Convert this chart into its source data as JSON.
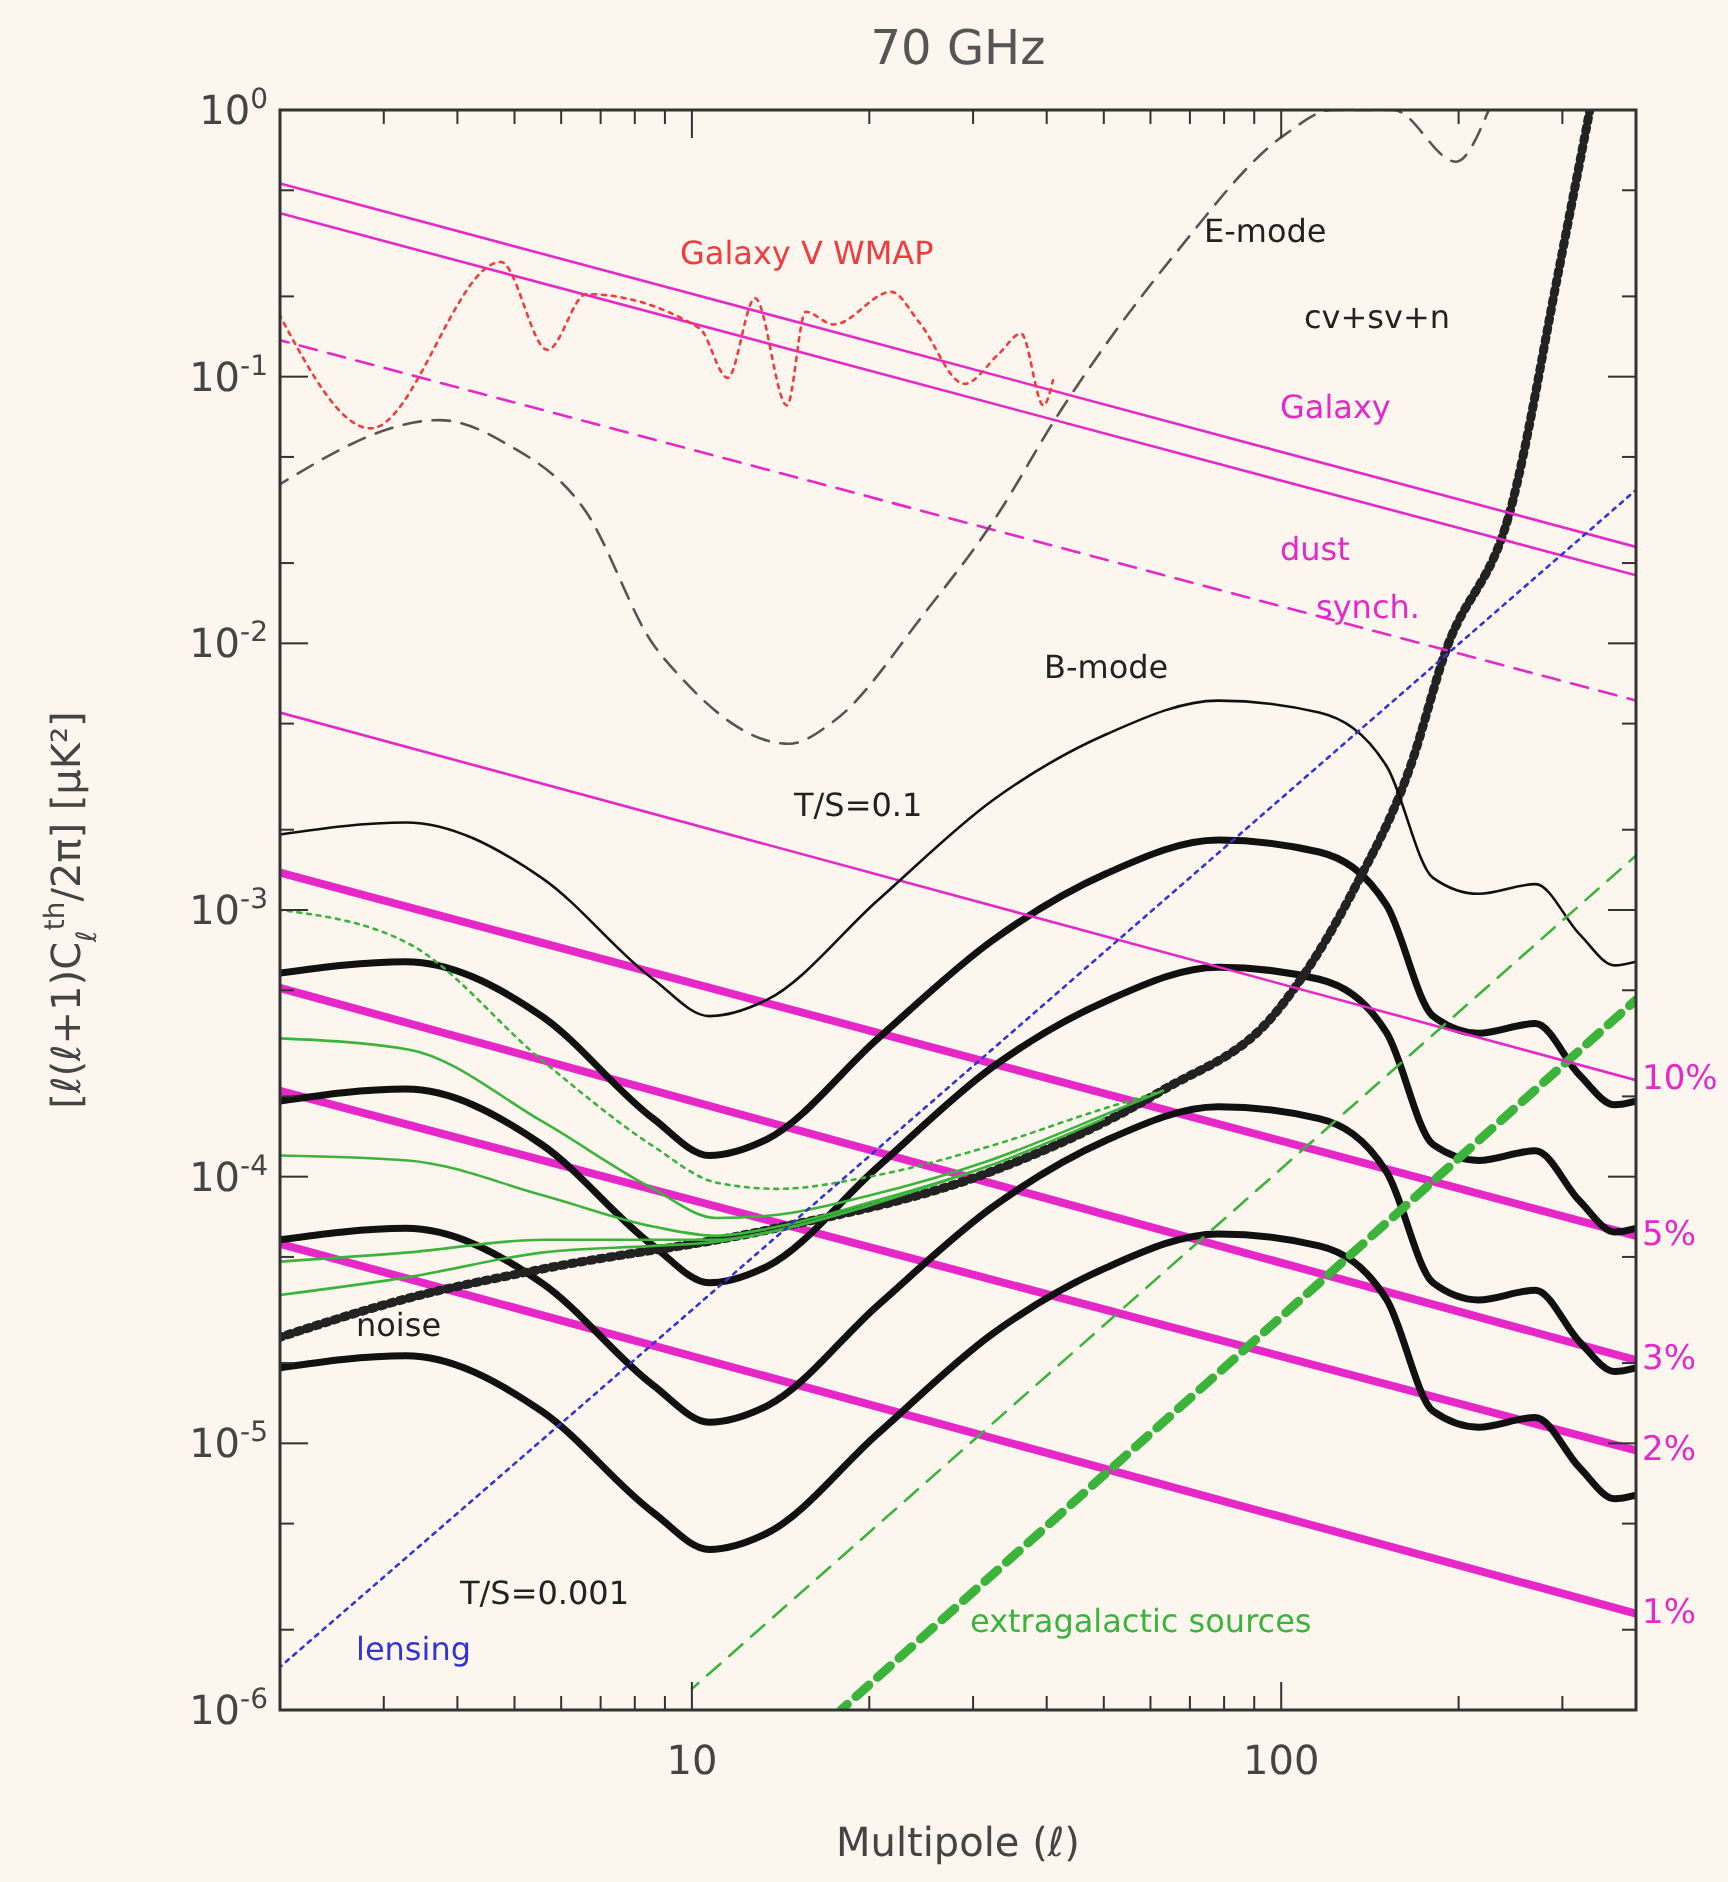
{
  "chart_data": {
    "type": "line",
    "title": "70 GHz",
    "xlabel": "Multipole (ℓ)",
    "ylabel": "[ℓ(ℓ+1)C$_{ℓ}$$^{th}$/2π] [μK²]",
    "log": "xy",
    "grid": false,
    "xlim": [
      2,
      400
    ],
    "ylim": [
      1e-06,
      1
    ],
    "xticks": [
      {
        "value": 2,
        "label": null
      },
      {
        "value": 3,
        "label": null
      },
      {
        "value": 4,
        "label": null
      },
      {
        "value": 5,
        "label": null
      },
      {
        "value": 6,
        "label": null
      },
      {
        "value": 7,
        "label": null
      },
      {
        "value": 8,
        "label": null
      },
      {
        "value": 9,
        "label": null
      },
      10,
      {
        "value": 20,
        "label": null
      },
      {
        "value": 30,
        "label": null
      },
      {
        "value": 40,
        "label": null
      },
      {
        "value": 50,
        "label": null
      },
      {
        "value": 60,
        "label": null
      },
      {
        "value": 70,
        "label": null
      },
      {
        "value": 80,
        "label": null
      },
      {
        "value": 90,
        "label": null
      },
      100,
      {
        "value": 200,
        "label": null
      },
      {
        "value": 300,
        "label": null
      },
      {
        "value": 400,
        "label": null
      }
    ],
    "yticks": [
      {
        "value": 1e-06,
        "label": "10$^{-6}$"
      },
      {
        "value": 2e-06,
        "label": null
      },
      {
        "value": 5e-06,
        "label": null
      },
      {
        "value": 1e-05,
        "label": "10$^{-5}$"
      },
      {
        "value": 2e-05,
        "label": null
      },
      {
        "value": 5e-05,
        "label": null
      },
      {
        "value": 0.0001,
        "label": "10$^{-4}$"
      },
      {
        "value": 0.0002,
        "label": null
      },
      {
        "value": 0.0005,
        "label": null
      },
      {
        "value": 0.001,
        "label": "10$^{-3}$"
      },
      {
        "value": 0.002,
        "label": null
      },
      {
        "value": 0.005,
        "label": null
      },
      {
        "value": 0.01,
        "label": "10$^{-2}$"
      },
      {
        "value": 0.02,
        "label": null
      },
      {
        "value": 0.05,
        "label": null
      },
      {
        "value": 0.1,
        "label": "10$^{-1}$"
      },
      {
        "value": 0.2,
        "label": null
      },
      {
        "value": 0.5,
        "label": null
      },
      {
        "value": 1,
        "label": "10$^{0}$"
      }
    ],
    "series": [
      {
        "color": "#e628c8",
        "line_style": "solid",
        "x": [
          2,
          400
        ],
        "values": [
          0.53,
          0.023
        ]
      },
      {
        "color": "#e628c8",
        "line_style": "solid",
        "x": [
          2,
          400
        ],
        "values": [
          0.41,
          0.018
        ]
      },
      {
        "color": "#e628c8",
        "line_style": "dashed",
        "x": [
          2,
          400
        ],
        "values": [
          0.137,
          0.0061
        ]
      },
      {
        "name": "10%",
        "color": "#e628c8",
        "line_style": "solid",
        "x": [
          2,
          400
        ],
        "values": [
          0.0055,
          0.00023
        ]
      },
      {
        "name": "5%",
        "color": "#e628c8",
        "line_style": "solid",
        "x": [
          2,
          400
        ],
        "values": [
          0.00138,
          6e-05
        ]
      },
      {
        "name": "3%",
        "color": "#e628c8",
        "line_style": "solid",
        "x": [
          2,
          400
        ],
        "values": [
          0.00051,
          2.05e-05
        ]
      },
      {
        "name": "2%",
        "color": "#e628c8",
        "line_style": "solid",
        "x": [
          2,
          400
        ],
        "values": [
          0.00021,
          9.4e-06
        ]
      },
      {
        "name": "1%",
        "color": "#e628c8",
        "line_style": "solid",
        "x": [
          2,
          400
        ],
        "values": [
          5.6e-05,
          2.3e-06
        ]
      },
      {
        "color": "#f03c3c",
        "line_style": "dotted",
        "x": [
          2,
          2.85,
          4.74,
          5.69,
          6.62,
          10.3,
          11.5,
          12.8,
          14.5,
          15.6,
          17.4,
          21.8,
          24.3,
          29,
          33.2,
          36.2,
          39.5,
          41
        ],
        "values": [
          0.169,
          0.064,
          0.269,
          0.126,
          0.204,
          0.152,
          0.099,
          0.197,
          0.078,
          0.175,
          0.157,
          0.208,
          0.16,
          0.094,
          0.122,
          0.145,
          0.078,
          0.097
        ]
      },
      {
        "color": "#555555",
        "line_style": "dashed",
        "x": [
          2,
          3.73,
          4.85,
          6.62,
          8.6,
          9.4,
          14.6,
          17.4,
          24.9,
          32.4,
          42.1,
          65.6,
          101.6,
          122,
          155,
          198,
          225
        ],
        "values": [
          0.0395,
          0.0687,
          0.0559,
          0.031,
          0.0099,
          0.0078,
          0.0042,
          0.0051,
          0.0131,
          0.0285,
          0.0737,
          0.283,
          0.81,
          1,
          1,
          0.64,
          1
        ]
      },
      {
        "color": "#111111",
        "line_style": "solid",
        "x": [
          2,
          3.27,
          5.56,
          8.6,
          10.7,
          13.4,
          20.7,
          32.4,
          50.5,
          78.2,
          116,
          151,
          181,
          216,
          270,
          321,
          368,
          400
        ],
        "values": [
          0.00192,
          0.00213,
          0.00132,
          0.00055,
          0.0004,
          0.00046,
          0.00109,
          0.00258,
          0.00456,
          0.0061,
          0.0055,
          0.00346,
          0.00132,
          0.00115,
          0.00125,
          0.00081,
          0.00062,
          0.00064
        ]
      },
      {
        "color": "#111111",
        "line_style": "solid",
        "x": [
          2,
          3.27,
          5.56,
          8.6,
          10.7,
          13.4,
          20.7,
          32.4,
          50.5,
          78.2,
          116,
          151,
          181,
          216,
          270,
          321,
          368,
          400
        ],
        "values": [
          0.00058,
          0.00064,
          0.0004,
          0.000165,
          0.00012,
          0.000138,
          0.00033,
          0.00077,
          0.00137,
          0.00183,
          0.00165,
          0.00104,
          0.0004,
          0.000345,
          0.000375,
          0.00024,
          0.000186,
          0.000192
        ]
      },
      {
        "color": "#111111",
        "line_style": "solid",
        "x": [
          2,
          3.27,
          5.56,
          8.6,
          10.7,
          13.4,
          20.7,
          32.4,
          50.5,
          78.2,
          116,
          151,
          181,
          216,
          270,
          321,
          368,
          400
        ],
        "values": [
          0.000192,
          0.000213,
          0.000132,
          5.5e-05,
          4e-05,
          4.6e-05,
          0.000109,
          0.000258,
          0.000456,
          0.00061,
          0.00055,
          0.000346,
          0.000132,
          0.000115,
          0.000125,
          8.1e-05,
          6.2e-05,
          6.4e-05
        ]
      },
      {
        "color": "#111111",
        "line_style": "solid",
        "x": [
          2,
          3.27,
          5.56,
          8.6,
          10.7,
          13.4,
          20.7,
          32.4,
          50.5,
          78.2,
          116,
          151,
          181,
          216,
          270,
          321,
          368,
          400
        ],
        "values": [
          5.8e-05,
          6.4e-05,
          4e-05,
          1.65e-05,
          1.2e-05,
          1.38e-05,
          3.3e-05,
          7.7e-05,
          0.000137,
          0.000183,
          0.000165,
          0.000104,
          4e-05,
          3.45e-05,
          3.75e-05,
          2.4e-05,
          1.86e-05,
          1.92e-05
        ]
      },
      {
        "color": "#111111",
        "line_style": "solid",
        "x": [
          2,
          3.27,
          5.56,
          8.6,
          10.7,
          13.4,
          20.7,
          32.4,
          50.5,
          78.2,
          116,
          151,
          181,
          216,
          270,
          321,
          368,
          400
        ],
        "values": [
          1.92e-05,
          2.13e-05,
          1.32e-05,
          5.5e-06,
          4e-06,
          4.6e-06,
          1.09e-05,
          2.58e-05,
          4.56e-05,
          6.1e-05,
          5.5e-05,
          3.46e-05,
          1.32e-05,
          1.15e-05,
          1.25e-05,
          8.1e-06,
          6.2e-06,
          6.4e-06
        ]
      },
      {
        "color": "#3cb43c",
        "line_style": "dotted",
        "x": [
          2,
          3.3,
          5.6,
          8.6,
          11,
          14,
          20,
          32,
          50,
          63
        ],
        "values": [
          0.001,
          0.00075,
          0.00027,
          0.00013,
          9.5e-05,
          9e-05,
          0.0001,
          0.00013,
          0.00018,
          0.00021
        ]
      },
      {
        "color": "#3cb43c",
        "line_style": "solid",
        "x": [
          2,
          3.3,
          5.6,
          8.6,
          11,
          14,
          20,
          32,
          50,
          63
        ],
        "values": [
          0.00033,
          0.0003,
          0.00016,
          9e-05,
          7e-05,
          7.2e-05,
          8.5e-05,
          0.000115,
          0.00017,
          0.00021
        ]
      },
      {
        "color": "#3cb43c",
        "line_style": "solid",
        "x": [
          2,
          3.3,
          5.6,
          8.6,
          11,
          14,
          20,
          32,
          50
        ],
        "values": [
          0.00012,
          0.000115,
          8.5e-05,
          6.5e-05,
          6e-05,
          6.5e-05,
          8e-05,
          0.00011,
          0.000165
        ]
      },
      {
        "color": "#3cb43c",
        "line_style": "solid",
        "x": [
          2,
          3.3,
          5.6,
          8.6,
          11,
          14,
          20,
          32
        ],
        "values": [
          4.8e-05,
          5.2e-05,
          5.8e-05,
          5.8e-05,
          5.8e-05,
          6.3e-05,
          7.8e-05,
          0.00011
        ]
      },
      {
        "color": "#3cb43c",
        "line_style": "solid",
        "x": [
          2,
          3.3,
          5.6,
          8.6,
          11,
          14,
          20
        ],
        "values": [
          3.6e-05,
          4.2e-05,
          5.2e-05,
          5.5e-05,
          5.7e-05,
          6.3e-05,
          7.8e-05
        ]
      },
      {
        "color": "#222222",
        "line_style": "dotted",
        "x": [
          2,
          3.3,
          5.56,
          13.4,
          32.4,
          62.7,
          97.7,
          133,
          166,
          189,
          247,
          294,
          334
        ],
        "values": [
          2.5e-05,
          3.5e-05,
          4.5e-05,
          6.3e-05,
          0.000105,
          0.00021,
          0.00041,
          0.0012,
          0.0035,
          0.009,
          0.034,
          0.234,
          1
        ]
      },
      {
        "color": "#3434d0",
        "line_style": "dotted",
        "x": [
          2,
          10.7,
          400
        ],
        "values": [
          1.45e-06,
          3.6e-05,
          0.0376
        ]
      },
      {
        "color": "#3cb43c",
        "line_style": "dashed",
        "x": [
          10,
          400
        ],
        "values": [
          1.2e-06,
          0.0016
        ]
      },
      {
        "color": "#3cb43c",
        "line_style": "dashed",
        "x": [
          17.9,
          400
        ],
        "values": [
          1e-06,
          0.00046
        ]
      }
    ],
    "annotations": [
      "Galaxy V WMAP",
      "E-mode",
      "cv+sv+n",
      "Galaxy",
      "dust",
      "synch.",
      "B-mode",
      "T/S=0.1",
      "noise",
      "T/S=0.001",
      "lensing",
      "extragalactic sources"
    ]
  }
}
